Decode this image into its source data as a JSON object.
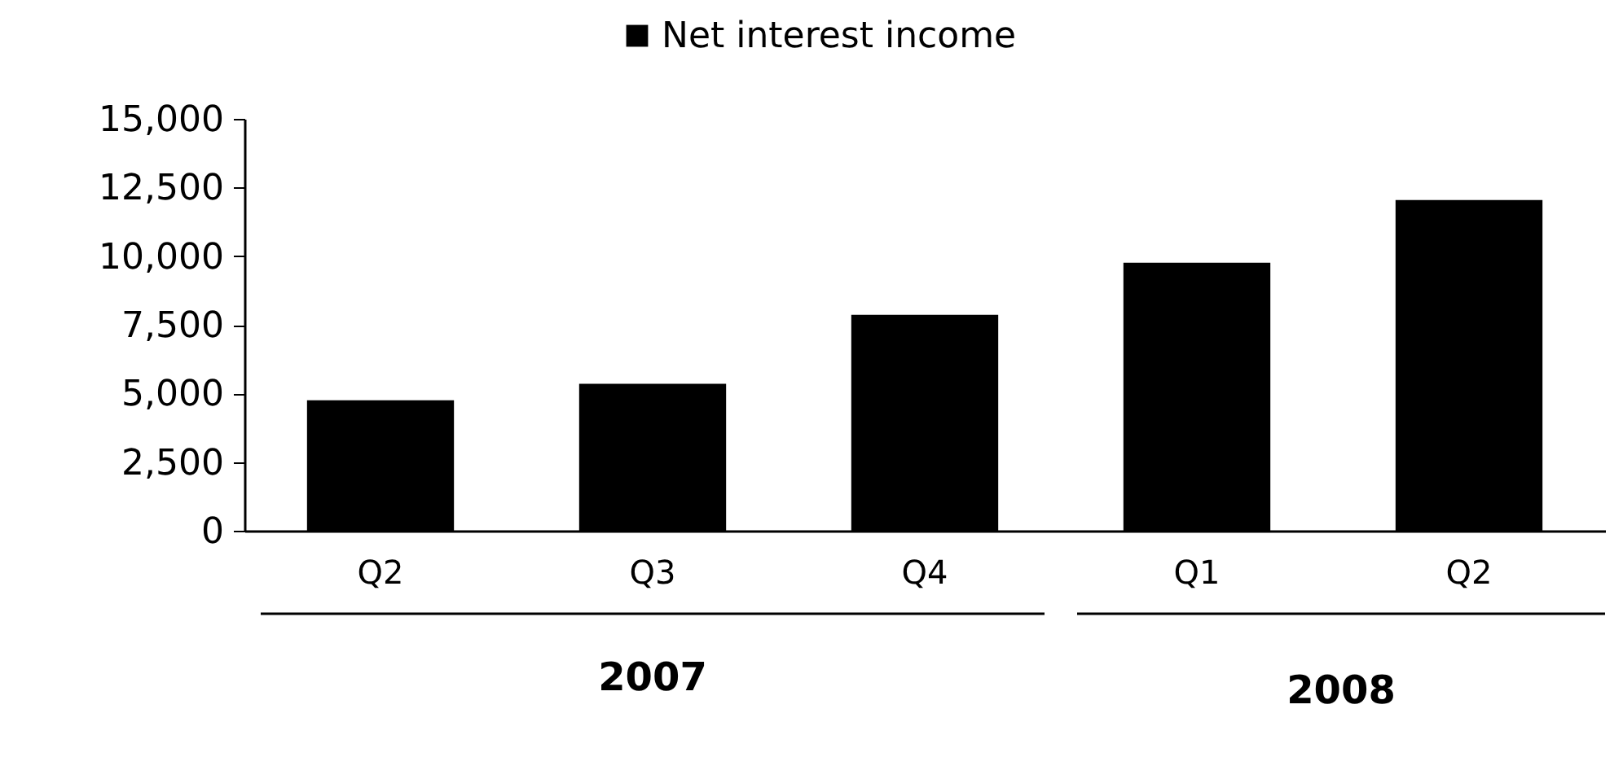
{
  "chart_data": {
    "type": "bar",
    "categories": [
      "Q2",
      "Q3",
      "Q4",
      "Q1",
      "Q2"
    ],
    "series": [
      {
        "name": "Net interest income",
        "color": "#000000",
        "values": [
          4750,
          5350,
          7860,
          9760,
          12040
        ]
      }
    ],
    "ylim": [
      0,
      15000
    ],
    "yticks": [
      0,
      {
        "value": 2500,
        "label": "2,500"
      },
      {
        "value": 5000,
        "label": "5,000"
      },
      {
        "value": 7500,
        "label": "7,500"
      },
      {
        "value": 10000,
        "label": "10,000"
      },
      {
        "value": 12500,
        "label": "12,500"
      },
      {
        "value": 15000,
        "label": "15,000"
      }
    ],
    "grid": false,
    "legend": "top",
    "annotations": [
      "2007",
      "2008"
    ]
  }
}
